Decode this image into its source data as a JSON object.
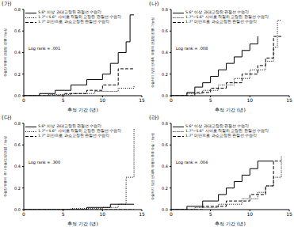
{
  "chart_data": [
    {
      "type": "line",
      "title": "(가)",
      "x_label": "추적 기간 (년)",
      "y_label": "수술한 무릎의 관절염 진행 가능성",
      "annotation": "Log rank = .001",
      "legend": "upper left",
      "xlim": [
        0,
        15
      ],
      "xticks": [
        0,
        5,
        10,
        15
      ],
      "ylim": [
        0,
        0.8
      ],
      "yticks": [
        {
          "value": 0,
          "label": "0.0"
        },
        {
          "value": 0.2,
          "label": "0.2"
        },
        {
          "value": 0.4,
          "label": "0.4"
        },
        {
          "value": 0.6,
          "label": "0.6"
        },
        {
          "value": 0.8,
          "label": "0.8"
        }
      ],
      "series": [
        {
          "name": "5.6° 이상 과대교정된 관절선 수렴각",
          "color": "#000000",
          "line_style": "solid",
          "x": [
            0,
            2,
            4,
            6,
            8,
            10,
            11,
            12,
            13,
            13.5,
            14
          ],
          "values": [
            0,
            0.02,
            0.05,
            0.1,
            0.15,
            0.2,
            0.3,
            0.4,
            0.5,
            0.75,
            0.75
          ]
        },
        {
          "name": "1.7°~5.6° 사이로 적절히 교정된 관절선 수렴각",
          "color": "#000000",
          "line_style": "dotted",
          "x": [
            0,
            3,
            6,
            9,
            12,
            14
          ],
          "values": [
            0,
            0.01,
            0.02,
            0.04,
            0.07,
            0.1
          ]
        },
        {
          "name": "1.7° 미만으로 과소교정된 관절선 수렴각",
          "color": "#000000",
          "line_style": "dashed",
          "x": [
            0,
            5,
            8,
            10,
            12,
            14
          ],
          "values": [
            0,
            0.02,
            0.05,
            0.1,
            0.25,
            0.25
          ]
        }
      ]
    },
    {
      "type": "line",
      "title": "(나)",
      "x_label": "추적 기간 (년)",
      "y_label": "수술하지 않은 반대측 무릎의 관절염 진행 가능성",
      "annotation": "Log rank = .008",
      "legend": "upper left",
      "xlim": [
        0,
        15
      ],
      "xticks": [
        0,
        5,
        10,
        15
      ],
      "ylim": [
        0,
        0.8
      ],
      "yticks": [
        {
          "value": 0,
          "label": "0.0"
        },
        {
          "value": 0.2,
          "label": "0.2"
        },
        {
          "value": 0.4,
          "label": "0.4"
        },
        {
          "value": 0.6,
          "label": "0.6"
        },
        {
          "value": 0.8,
          "label": "0.8"
        }
      ],
      "series": [
        {
          "name": "5.6° 이상 과대교정된 관절선 수렴각",
          "color": "#000000",
          "line_style": "solid",
          "x": [
            0,
            2,
            3,
            4,
            5,
            6,
            7,
            8,
            9,
            10,
            11
          ],
          "values": [
            0,
            0.03,
            0.08,
            0.12,
            0.18,
            0.24,
            0.3,
            0.36,
            0.42,
            0.48,
            0.55
          ]
        },
        {
          "name": "1.7°~5.6° 사이로 적절히 교정된 관절선 수렴각",
          "color": "#000000",
          "line_style": "dotted",
          "x": [
            0,
            2,
            4,
            6,
            8,
            10,
            12,
            13,
            13.5,
            14
          ],
          "values": [
            0,
            0.02,
            0.05,
            0.1,
            0.16,
            0.24,
            0.32,
            0.45,
            0.7,
            0.7
          ]
        },
        {
          "name": "1.7° 미만으로 과소교정된 관절선 수렴각",
          "color": "#000000",
          "line_style": "dashed",
          "x": [
            0,
            3,
            5,
            7,
            9,
            11,
            12,
            13,
            14
          ],
          "values": [
            0,
            0.03,
            0.07,
            0.12,
            0.2,
            0.28,
            0.35,
            0.55,
            0.55
          ]
        }
      ]
    },
    {
      "type": "line",
      "title": "(다)",
      "x_label": "추적 기간 (년)",
      "y_label": "수술한 무릎의 추가 수술(인공관절) 가능성",
      "annotation": "Log rank = .300",
      "legend": "upper left",
      "xlim": [
        0,
        15
      ],
      "xticks": [
        0,
        5,
        10,
        15
      ],
      "ylim": [
        0,
        0.8
      ],
      "yticks": [
        {
          "value": 0,
          "label": "0.0"
        },
        {
          "value": 0.2,
          "label": "0.2"
        },
        {
          "value": 0.4,
          "label": "0.4"
        },
        {
          "value": 0.6,
          "label": "0.6"
        },
        {
          "value": 0.8,
          "label": "0.8"
        }
      ],
      "series": [
        {
          "name": "5.6° 이상 과대교정된 관절선 수렴각",
          "color": "#000000",
          "line_style": "solid",
          "x": [
            0,
            8,
            11,
            14
          ],
          "values": [
            0,
            0.02,
            0.05,
            0.05
          ]
        },
        {
          "name": "1.7°~5.6° 사이로 적절히 교정된 관절선 수렴각",
          "color": "#000000",
          "line_style": "dotted",
          "x": [
            0,
            6,
            10,
            12,
            13,
            14
          ],
          "values": [
            0,
            0.01,
            0.02,
            0.05,
            0.3,
            0.75
          ]
        },
        {
          "name": "1.7° 미만으로 과소교정된 관절선 수렴각",
          "color": "#000000",
          "line_style": "dashed",
          "x": [
            0,
            14
          ],
          "values": [
            0,
            0
          ]
        }
      ]
    },
    {
      "type": "line",
      "title": "(라)",
      "x_label": "추적 기간 (년)",
      "y_label": "수술하지 않은 반대측 무릎의 추후 수술 가능성",
      "annotation": "Log rank = .004",
      "legend": "upper left",
      "xlim": [
        0,
        15
      ],
      "xticks": [
        0,
        5,
        10,
        15
      ],
      "ylim": [
        0,
        0.8
      ],
      "yticks": [
        {
          "value": 0,
          "label": "0.0"
        },
        {
          "value": 0.2,
          "label": "0.2"
        },
        {
          "value": 0.4,
          "label": "0.4"
        },
        {
          "value": 0.6,
          "label": "0.6"
        },
        {
          "value": 0.8,
          "label": "0.8"
        }
      ],
      "series": [
        {
          "name": "5.6° 이상 과대교정된 관절선 수렴각",
          "color": "#000000",
          "line_style": "solid",
          "x": [
            0,
            2,
            4,
            6,
            7,
            8,
            9,
            10,
            11,
            13
          ],
          "values": [
            0,
            0.03,
            0.08,
            0.14,
            0.2,
            0.26,
            0.32,
            0.38,
            0.45,
            0.45
          ]
        },
        {
          "name": "1.7°~5.6° 사이로 적절히 교정된 관절선 수렴각",
          "color": "#000000",
          "line_style": "dotted",
          "x": [
            0,
            3,
            6,
            9,
            11,
            12,
            13,
            14
          ],
          "values": [
            0,
            0.02,
            0.05,
            0.1,
            0.16,
            0.22,
            0.3,
            0.5
          ]
        },
        {
          "name": "1.7° 미만으로 과소교정된 관절선 수렴각",
          "color": "#000000",
          "line_style": "dashed",
          "x": [
            0,
            4,
            7,
            10,
            12,
            13,
            14
          ],
          "values": [
            0,
            0.03,
            0.08,
            0.14,
            0.22,
            0.45,
            0.45
          ]
        }
      ]
    }
  ]
}
